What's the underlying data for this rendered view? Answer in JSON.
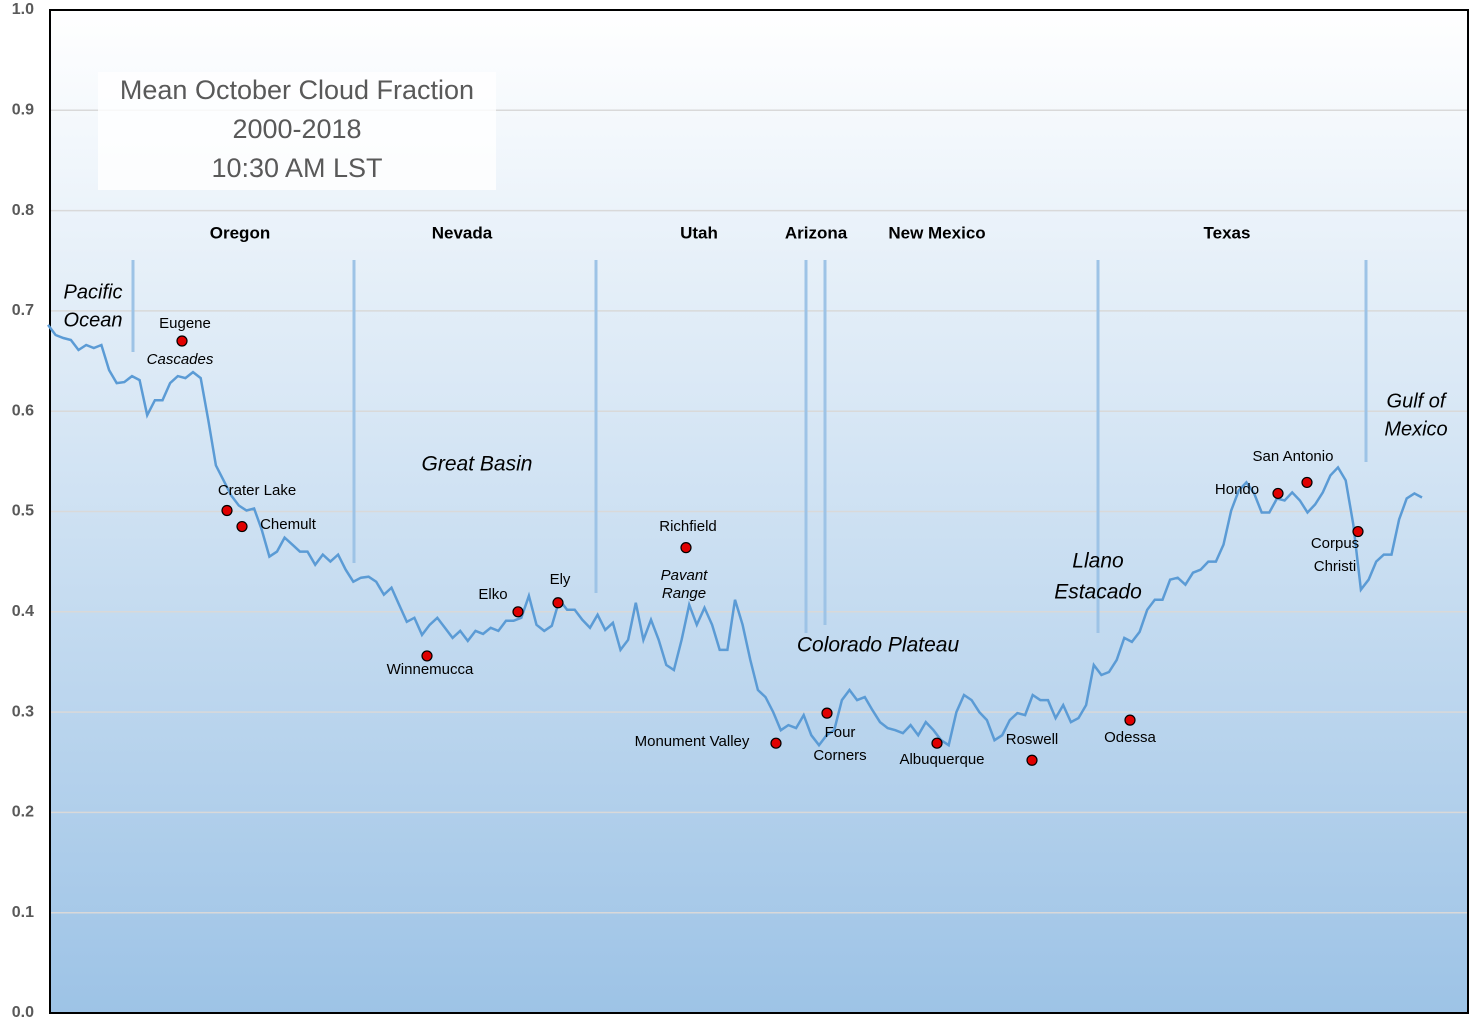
{
  "chart_data": {
    "type": "line",
    "title": [
      "Mean October Cloud Fraction",
      "2000-2018",
      "10:30 AM LST"
    ],
    "color": "#5b9bd5",
    "ylim": [
      0,
      1
    ],
    "yticks": [
      {
        "value": 0,
        "label": "0.0"
      },
      0.1,
      0.2,
      0.3,
      0.4,
      0.5,
      0.6,
      0.7,
      0.8,
      0.9,
      {
        "value": 1,
        "label": "1.0"
      }
    ],
    "grid": true,
    "values": [
      0.686,
      0.676,
      0.673,
      0.671,
      0.661,
      0.666,
      0.663,
      0.666,
      0.641,
      0.628,
      0.629,
      0.635,
      0.631,
      0.596,
      0.611,
      0.611,
      0.628,
      0.635,
      0.633,
      0.639,
      0.633,
      0.591,
      0.546,
      0.531,
      0.516,
      0.506,
      0.501,
      0.503,
      0.482,
      0.455,
      0.46,
      0.474,
      0.467,
      0.46,
      0.46,
      0.447,
      0.457,
      0.45,
      0.457,
      0.442,
      0.43,
      0.434,
      0.435,
      0.43,
      0.417,
      0.424,
      0.407,
      0.39,
      0.394,
      0.377,
      0.387,
      0.394,
      0.384,
      0.374,
      0.381,
      0.371,
      0.381,
      0.378,
      0.384,
      0.381,
      0.391,
      0.391,
      0.394,
      0.416,
      0.387,
      0.381,
      0.386,
      0.412,
      0.402,
      0.402,
      0.392,
      0.384,
      0.397,
      0.382,
      0.389,
      0.362,
      0.372,
      0.409,
      0.372,
      0.392,
      0.372,
      0.347,
      0.342,
      0.372,
      0.407,
      0.387,
      0.404,
      0.387,
      0.362,
      0.362,
      0.412,
      0.387,
      0.352,
      0.322,
      0.315,
      0.3,
      0.282,
      0.287,
      0.284,
      0.297,
      0.277,
      0.267,
      0.277,
      0.282,
      0.312,
      0.322,
      0.312,
      0.315,
      0.302,
      0.29,
      0.284,
      0.282,
      0.279,
      0.287,
      0.277,
      0.29,
      0.282,
      0.272,
      0.267,
      0.3,
      0.317,
      0.312,
      0.3,
      0.292,
      0.272,
      0.277,
      0.292,
      0.299,
      0.297,
      0.317,
      0.312,
      0.312,
      0.294,
      0.307,
      0.29,
      0.294,
      0.307,
      0.347,
      0.337,
      0.34,
      0.352,
      0.374,
      0.37,
      0.38,
      0.402,
      0.412,
      0.412,
      0.432,
      0.434,
      0.427,
      0.439,
      0.442,
      0.45,
      0.45,
      0.467,
      0.501,
      0.521,
      0.529,
      0.518,
      0.499,
      0.499,
      0.513,
      0.511,
      0.519,
      0.511,
      0.499,
      0.507,
      0.519,
      0.536,
      0.544,
      0.531,
      0.487,
      0.422,
      0.432,
      0.45,
      0.457,
      0.457,
      0.492,
      0.513,
      0.518,
      0.514
    ],
    "states": [
      "Oregon",
      "Nevada",
      "Utah",
      "Arizona",
      "New Mexico",
      "Texas"
    ],
    "regions": [
      [
        "Pacific",
        "Ocean"
      ],
      [
        "Cascades"
      ],
      [
        "Great Basin"
      ],
      [
        "Pavant",
        "Range"
      ],
      [
        "Colorado Plateau"
      ],
      [
        "Llano",
        "Estacado"
      ],
      [
        "Gulf of",
        "Mexico"
      ]
    ],
    "points": [
      {
        "label": [
          "Eugene"
        ],
        "value": 0.67
      },
      {
        "label": [
          "Crater Lake"
        ],
        "value": 0.501
      },
      {
        "label": [
          "Chemult"
        ],
        "value": 0.485
      },
      {
        "label": [
          "Winnemucca"
        ],
        "value": 0.356
      },
      {
        "label": [
          "Elko"
        ],
        "value": 0.4
      },
      {
        "label": [
          "Ely"
        ],
        "value": 0.409
      },
      {
        "label": [
          "Richfield"
        ],
        "value": 0.464
      },
      {
        "label": [
          "Monument Valley"
        ],
        "value": 0.269
      },
      {
        "label": [
          "Four",
          "Corners"
        ],
        "value": 0.299
      },
      {
        "label": [
          "Albuquerque"
        ],
        "value": 0.269
      },
      {
        "label": [
          "Roswell"
        ],
        "value": 0.252
      },
      {
        "label": [
          "Odessa"
        ],
        "value": 0.292
      },
      {
        "label": [
          "Hondo"
        ],
        "value": 0.518
      },
      {
        "label": [
          "San Antonio"
        ],
        "value": 0.529
      },
      {
        "label": [
          "Corpus",
          "Christi"
        ],
        "value": 0.48
      }
    ]
  }
}
